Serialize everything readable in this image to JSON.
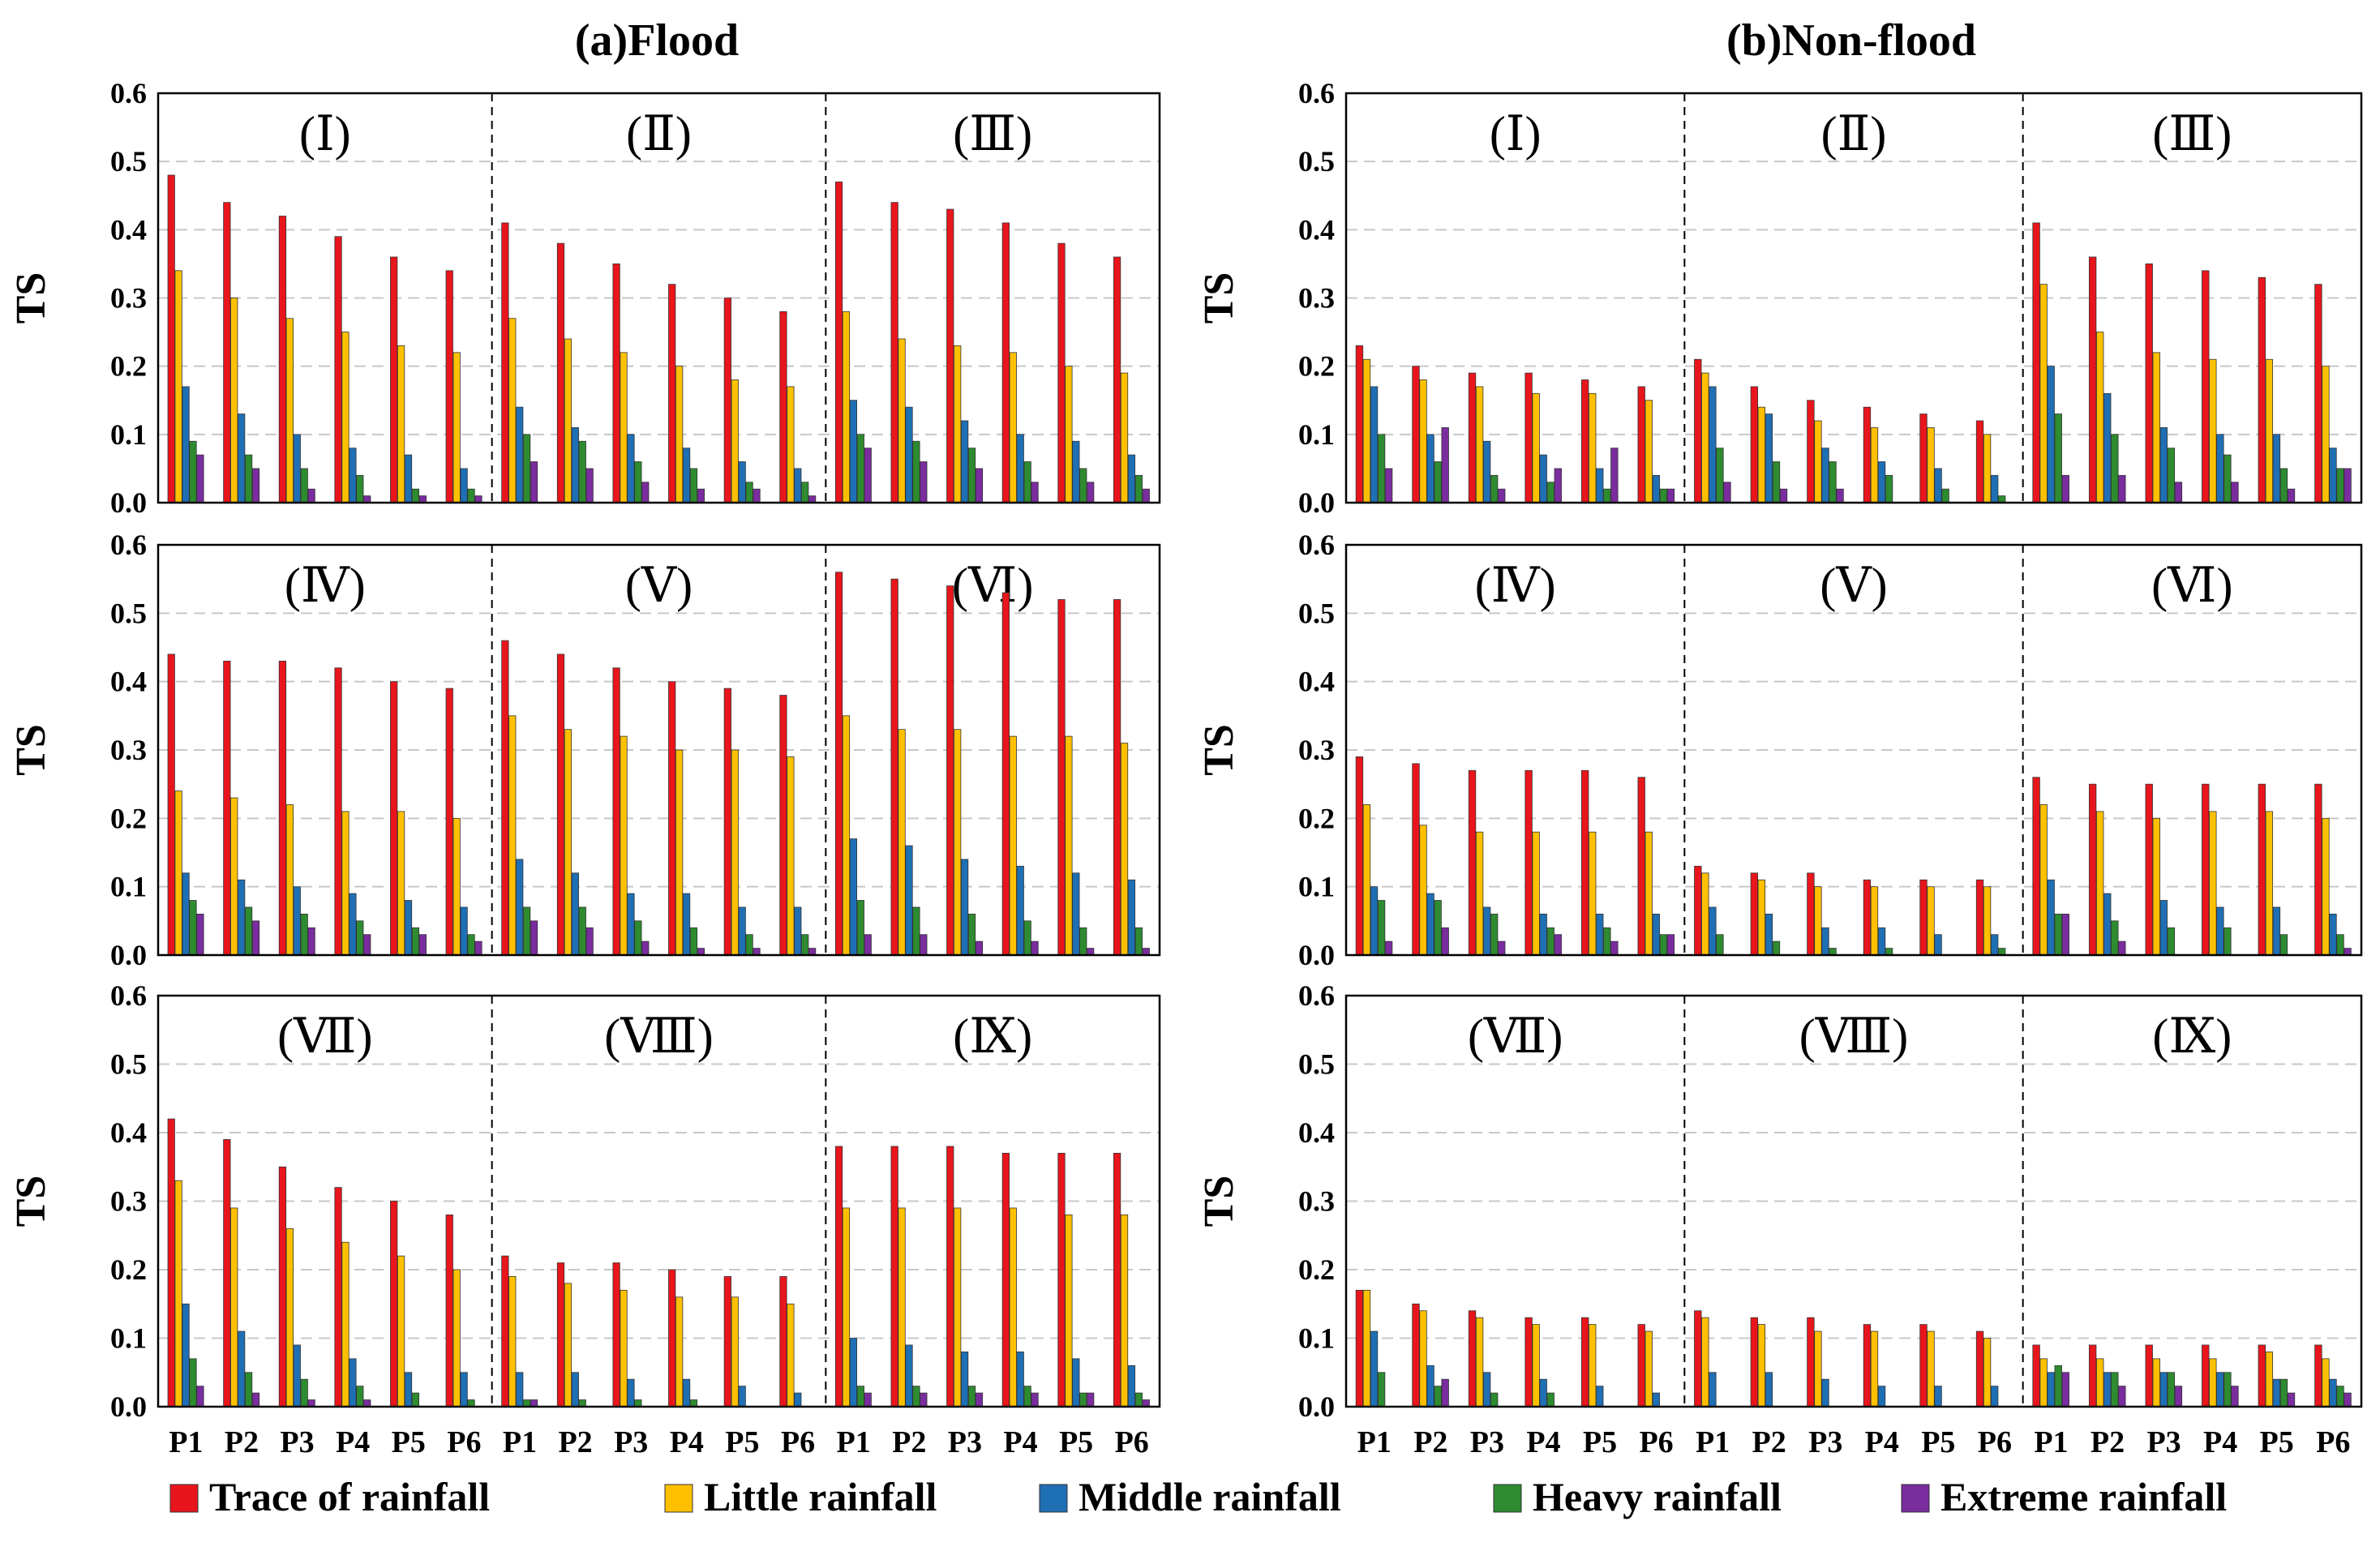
{
  "chart_data": {
    "type": "bar",
    "title_left": "(a)Flood",
    "title_right": "(b)Non-flood",
    "ylabel": "TS",
    "ylim": [
      0,
      0.6
    ],
    "yticks": [
      "0.0",
      "0.1",
      "0.2",
      "0.3",
      "0.4",
      "0.5",
      "0.6"
    ],
    "categories": [
      "P1",
      "P2",
      "P3",
      "P4",
      "P5",
      "P6"
    ],
    "grid": "horizontal dashed",
    "legend_position": "bottom",
    "series": [
      {
        "name": "Trace of rainfall",
        "color": "#e8161c"
      },
      {
        "name": "Little rainfall",
        "color": "#ffc000"
      },
      {
        "name": "Middle rainfall",
        "color": "#1f6fb4"
      },
      {
        "name": "Heavy rainfall",
        "color": "#2e8b30"
      },
      {
        "name": "Extreme rainfall",
        "color": "#7a2d9e"
      }
    ],
    "panels": [
      {
        "column": "flood",
        "row": 0,
        "regions": [
          {
            "label": "(Ⅰ)",
            "values": [
              [
                0.48,
                0.34,
                0.17,
                0.09,
                0.07
              ],
              [
                0.44,
                0.3,
                0.13,
                0.07,
                0.05
              ],
              [
                0.42,
                0.27,
                0.1,
                0.05,
                0.02
              ],
              [
                0.39,
                0.25,
                0.08,
                0.04,
                0.01
              ],
              [
                0.36,
                0.23,
                0.07,
                0.02,
                0.01
              ],
              [
                0.34,
                0.22,
                0.05,
                0.02,
                0.01
              ]
            ]
          },
          {
            "label": "(Ⅱ)",
            "values": [
              [
                0.41,
                0.27,
                0.14,
                0.1,
                0.06
              ],
              [
                0.38,
                0.24,
                0.11,
                0.09,
                0.05
              ],
              [
                0.35,
                0.22,
                0.1,
                0.06,
                0.03
              ],
              [
                0.32,
                0.2,
                0.08,
                0.05,
                0.02
              ],
              [
                0.3,
                0.18,
                0.06,
                0.03,
                0.02
              ],
              [
                0.28,
                0.17,
                0.05,
                0.03,
                0.01
              ]
            ]
          },
          {
            "label": "(Ⅲ)",
            "values": [
              [
                0.47,
                0.28,
                0.15,
                0.1,
                0.08
              ],
              [
                0.44,
                0.24,
                0.14,
                0.09,
                0.06
              ],
              [
                0.43,
                0.23,
                0.12,
                0.08,
                0.05
              ],
              [
                0.41,
                0.22,
                0.1,
                0.06,
                0.03
              ],
              [
                0.38,
                0.2,
                0.09,
                0.05,
                0.03
              ],
              [
                0.36,
                0.19,
                0.07,
                0.04,
                0.02
              ]
            ]
          }
        ]
      },
      {
        "column": "flood",
        "row": 1,
        "regions": [
          {
            "label": "(Ⅳ)",
            "values": [
              [
                0.44,
                0.24,
                0.12,
                0.08,
                0.06
              ],
              [
                0.43,
                0.23,
                0.11,
                0.07,
                0.05
              ],
              [
                0.43,
                0.22,
                0.1,
                0.06,
                0.04
              ],
              [
                0.42,
                0.21,
                0.09,
                0.05,
                0.03
              ],
              [
                0.4,
                0.21,
                0.08,
                0.04,
                0.03
              ],
              [
                0.39,
                0.2,
                0.07,
                0.03,
                0.02
              ]
            ]
          },
          {
            "label": "(Ⅴ)",
            "values": [
              [
                0.46,
                0.35,
                0.14,
                0.07,
                0.05
              ],
              [
                0.44,
                0.33,
                0.12,
                0.07,
                0.04
              ],
              [
                0.42,
                0.32,
                0.09,
                0.05,
                0.02
              ],
              [
                0.4,
                0.3,
                0.09,
                0.04,
                0.01
              ],
              [
                0.39,
                0.3,
                0.07,
                0.03,
                0.01
              ],
              [
                0.38,
                0.29,
                0.07,
                0.03,
                0.01
              ]
            ]
          },
          {
            "label": "(Ⅵ)",
            "values": [
              [
                0.56,
                0.35,
                0.17,
                0.08,
                0.03
              ],
              [
                0.55,
                0.33,
                0.16,
                0.07,
                0.03
              ],
              [
                0.54,
                0.33,
                0.14,
                0.06,
                0.02
              ],
              [
                0.53,
                0.32,
                0.13,
                0.05,
                0.02
              ],
              [
                0.52,
                0.32,
                0.12,
                0.04,
                0.01
              ],
              [
                0.52,
                0.31,
                0.11,
                0.04,
                0.01
              ]
            ]
          }
        ]
      },
      {
        "column": "flood",
        "row": 2,
        "regions": [
          {
            "label": "(Ⅶ)",
            "values": [
              [
                0.42,
                0.33,
                0.15,
                0.07,
                0.03
              ],
              [
                0.39,
                0.29,
                0.11,
                0.05,
                0.02
              ],
              [
                0.35,
                0.26,
                0.09,
                0.04,
                0.01
              ],
              [
                0.32,
                0.24,
                0.07,
                0.03,
                0.01
              ],
              [
                0.3,
                0.22,
                0.05,
                0.02,
                0.0
              ],
              [
                0.28,
                0.2,
                0.05,
                0.01,
                0.0
              ]
            ]
          },
          {
            "label": "(Ⅷ)",
            "values": [
              [
                0.22,
                0.19,
                0.05,
                0.01,
                0.01
              ],
              [
                0.21,
                0.18,
                0.05,
                0.01,
                0.0
              ],
              [
                0.21,
                0.17,
                0.04,
                0.01,
                0.0
              ],
              [
                0.2,
                0.16,
                0.04,
                0.01,
                0.0
              ],
              [
                0.19,
                0.16,
                0.03,
                0.0,
                0.0
              ],
              [
                0.19,
                0.15,
                0.02,
                0.0,
                0.0
              ]
            ]
          },
          {
            "label": "(Ⅸ)",
            "values": [
              [
                0.38,
                0.29,
                0.1,
                0.03,
                0.02
              ],
              [
                0.38,
                0.29,
                0.09,
                0.03,
                0.02
              ],
              [
                0.38,
                0.29,
                0.08,
                0.03,
                0.02
              ],
              [
                0.37,
                0.29,
                0.08,
                0.03,
                0.02
              ],
              [
                0.37,
                0.28,
                0.07,
                0.02,
                0.02
              ],
              [
                0.37,
                0.28,
                0.06,
                0.02,
                0.01
              ]
            ]
          }
        ]
      },
      {
        "column": "nonflood",
        "row": 0,
        "regions": [
          {
            "label": "(Ⅰ)",
            "values": [
              [
                0.23,
                0.21,
                0.17,
                0.1,
                0.05
              ],
              [
                0.2,
                0.18,
                0.1,
                0.06,
                0.11
              ],
              [
                0.19,
                0.17,
                0.09,
                0.04,
                0.02
              ],
              [
                0.19,
                0.16,
                0.07,
                0.03,
                0.05
              ],
              [
                0.18,
                0.16,
                0.05,
                0.02,
                0.08
              ],
              [
                0.17,
                0.15,
                0.04,
                0.02,
                0.02
              ]
            ]
          },
          {
            "label": "(Ⅱ)",
            "values": [
              [
                0.21,
                0.19,
                0.17,
                0.08,
                0.03
              ],
              [
                0.17,
                0.14,
                0.13,
                0.06,
                0.02
              ],
              [
                0.15,
                0.12,
                0.08,
                0.06,
                0.02
              ],
              [
                0.14,
                0.11,
                0.06,
                0.04,
                0.0
              ],
              [
                0.13,
                0.11,
                0.05,
                0.02,
                0.0
              ],
              [
                0.12,
                0.1,
                0.04,
                0.01,
                0.0
              ]
            ]
          },
          {
            "label": "(Ⅲ)",
            "values": [
              [
                0.41,
                0.32,
                0.2,
                0.13,
                0.04
              ],
              [
                0.36,
                0.25,
                0.16,
                0.1,
                0.04
              ],
              [
                0.35,
                0.22,
                0.11,
                0.08,
                0.03
              ],
              [
                0.34,
                0.21,
                0.1,
                0.07,
                0.03
              ],
              [
                0.33,
                0.21,
                0.1,
                0.05,
                0.02
              ],
              [
                0.32,
                0.2,
                0.08,
                0.05,
                0.05
              ]
            ]
          }
        ]
      },
      {
        "column": "nonflood",
        "row": 1,
        "regions": [
          {
            "label": "(Ⅳ)",
            "values": [
              [
                0.29,
                0.22,
                0.1,
                0.08,
                0.02
              ],
              [
                0.28,
                0.19,
                0.09,
                0.08,
                0.04
              ],
              [
                0.27,
                0.18,
                0.07,
                0.06,
                0.02
              ],
              [
                0.27,
                0.18,
                0.06,
                0.04,
                0.03
              ],
              [
                0.27,
                0.18,
                0.06,
                0.04,
                0.02
              ],
              [
                0.26,
                0.18,
                0.06,
                0.03,
                0.03
              ]
            ]
          },
          {
            "label": "(Ⅴ)",
            "values": [
              [
                0.13,
                0.12,
                0.07,
                0.03,
                0.0
              ],
              [
                0.12,
                0.11,
                0.06,
                0.02,
                0.0
              ],
              [
                0.12,
                0.1,
                0.04,
                0.01,
                0.0
              ],
              [
                0.11,
                0.1,
                0.04,
                0.01,
                0.0
              ],
              [
                0.11,
                0.1,
                0.03,
                0.0,
                0.0
              ],
              [
                0.11,
                0.1,
                0.03,
                0.01,
                0.0
              ]
            ]
          },
          {
            "label": "(Ⅵ)",
            "values": [
              [
                0.26,
                0.22,
                0.11,
                0.06,
                0.06
              ],
              [
                0.25,
                0.21,
                0.09,
                0.05,
                0.02
              ],
              [
                0.25,
                0.2,
                0.08,
                0.04,
                0.0
              ],
              [
                0.25,
                0.21,
                0.07,
                0.04,
                0.0
              ],
              [
                0.25,
                0.21,
                0.07,
                0.03,
                0.0
              ],
              [
                0.25,
                0.2,
                0.06,
                0.03,
                0.01
              ]
            ]
          }
        ]
      },
      {
        "column": "nonflood",
        "row": 2,
        "regions": [
          {
            "label": "(Ⅶ)",
            "values": [
              [
                0.17,
                0.17,
                0.11,
                0.05,
                0.0
              ],
              [
                0.15,
                0.14,
                0.06,
                0.03,
                0.04
              ],
              [
                0.14,
                0.13,
                0.05,
                0.02,
                0.0
              ],
              [
                0.13,
                0.12,
                0.04,
                0.02,
                0.0
              ],
              [
                0.13,
                0.12,
                0.03,
                0.0,
                0.0
              ],
              [
                0.12,
                0.11,
                0.02,
                0.0,
                0.0
              ]
            ]
          },
          {
            "label": "(Ⅷ)",
            "values": [
              [
                0.14,
                0.13,
                0.05,
                0.0,
                0.0
              ],
              [
                0.13,
                0.12,
                0.05,
                0.0,
                0.0
              ],
              [
                0.13,
                0.11,
                0.04,
                0.0,
                0.0
              ],
              [
                0.12,
                0.11,
                0.03,
                0.0,
                0.0
              ],
              [
                0.12,
                0.11,
                0.03,
                0.0,
                0.0
              ],
              [
                0.11,
                0.1,
                0.03,
                0.0,
                0.0
              ]
            ]
          },
          {
            "label": "(Ⅸ)",
            "values": [
              [
                0.09,
                0.07,
                0.05,
                0.06,
                0.05
              ],
              [
                0.09,
                0.07,
                0.05,
                0.05,
                0.03
              ],
              [
                0.09,
                0.07,
                0.05,
                0.05,
                0.03
              ],
              [
                0.09,
                0.07,
                0.05,
                0.05,
                0.03
              ],
              [
                0.09,
                0.08,
                0.04,
                0.04,
                0.02
              ],
              [
                0.09,
                0.07,
                0.04,
                0.03,
                0.02
              ]
            ]
          }
        ]
      }
    ]
  }
}
